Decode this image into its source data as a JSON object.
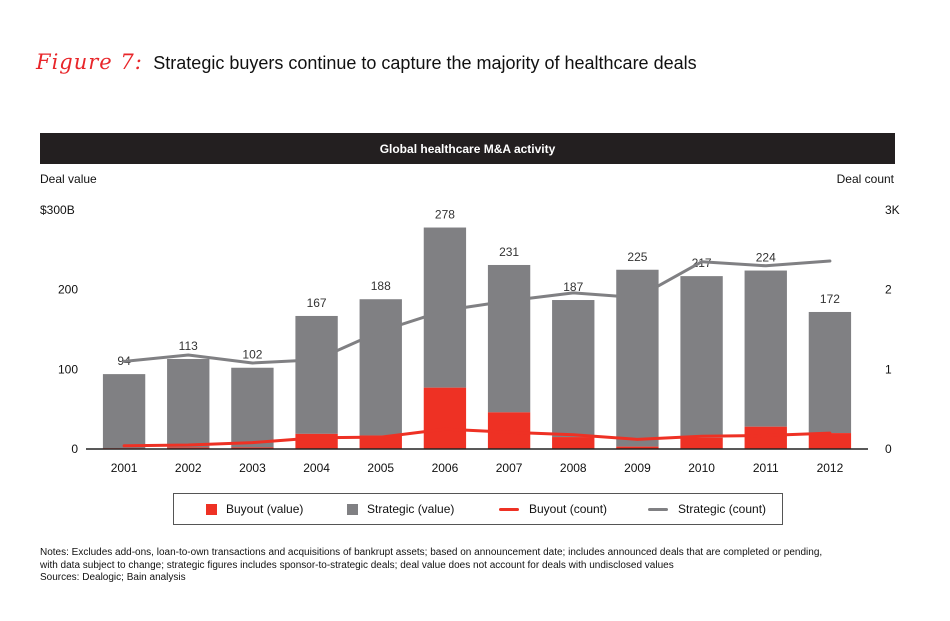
{
  "figure": {
    "label": "Figure 7:",
    "title": "Strategic buyers continue to capture the majority of healthcare deals"
  },
  "chart_data": {
    "type": "bar",
    "title": "Global healthcare M&A activity",
    "ylabel_left": "Deal value",
    "ylabel_right": "Deal count",
    "categories": [
      "2001",
      "2002",
      "2003",
      "2004",
      "2005",
      "2006",
      "2007",
      "2008",
      "2009",
      "2010",
      "2011",
      "2012"
    ],
    "left_axis": {
      "range": [
        0,
        300
      ],
      "ticks": [
        0,
        100,
        200,
        300
      ],
      "tick_labels": [
        "0",
        "100",
        "200",
        "$300B"
      ]
    },
    "right_axis": {
      "range": [
        0,
        3
      ],
      "ticks": [
        0,
        1,
        2,
        3
      ],
      "tick_labels": [
        "0",
        "1",
        "2",
        "3K"
      ]
    },
    "stacked": true,
    "series": [
      {
        "name": "Buyout (value)",
        "kind": "bar",
        "axis": "left",
        "color": "#ee3124",
        "values": [
          1,
          2,
          2,
          19,
          17,
          77,
          46,
          15,
          3,
          14,
          28,
          20
        ]
      },
      {
        "name": "Strategic (value)",
        "kind": "bar",
        "axis": "left",
        "color": "#808083",
        "values": [
          93,
          111,
          100,
          148,
          171,
          201,
          185,
          172,
          222,
          203,
          196,
          152
        ]
      },
      {
        "name": "Buyout (count)",
        "kind": "line",
        "axis": "right",
        "color": "#ee3124",
        "values": [
          0.04,
          0.05,
          0.08,
          0.14,
          0.15,
          0.25,
          0.21,
          0.18,
          0.12,
          0.16,
          0.17,
          0.2
        ]
      },
      {
        "name": "Strategic (count)",
        "kind": "line",
        "axis": "right",
        "color": "#808083",
        "values": [
          1.1,
          1.18,
          1.08,
          1.12,
          1.48,
          1.74,
          1.86,
          1.96,
          1.9,
          2.35,
          2.3,
          2.36
        ]
      }
    ],
    "totals": [
      94,
      113,
      102,
      167,
      188,
      278,
      231,
      187,
      225,
      217,
      224,
      172
    ],
    "legend_position": "bottom"
  },
  "legend": [
    {
      "label": "Buyout (value)",
      "type": "box",
      "color": "#ee3124"
    },
    {
      "label": "Strategic (value)",
      "type": "box",
      "color": "#808083"
    },
    {
      "label": "Buyout (count)",
      "type": "line",
      "color": "#ee3124"
    },
    {
      "label": "Strategic (count)",
      "type": "line",
      "color": "#808083"
    }
  ],
  "notes": {
    "line1": "Notes: Excludes add-ons, loan-to-own transactions and acquisitions of bankrupt assets; based on announcement date; includes announced deals that are completed or pending,",
    "line2": "with data subject to change; strategic figures includes sponsor-to-strategic deals; deal value does not account for deals with undisclosed values",
    "line3": "Sources: Dealogic; Bain analysis"
  }
}
